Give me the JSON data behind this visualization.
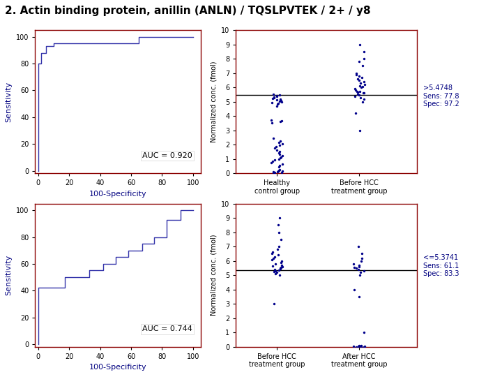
{
  "title": "2. Actin binding protein, anillin (ANLN) / TQSLPVTEK / 2+ / y8",
  "title_fontsize": 11,
  "title_fontweight": "bold",
  "roc1": {
    "fpr": [
      0,
      0,
      0,
      2,
      2,
      5,
      5,
      10,
      10,
      20,
      65,
      65,
      100
    ],
    "tpr": [
      0,
      60,
      80,
      80,
      88,
      88,
      93,
      93,
      95,
      95,
      95,
      100,
      100
    ],
    "auc_text": "AUC = 0.920",
    "xlabel": "100-Specificity",
    "ylabel": "Sensitivity"
  },
  "roc2": {
    "fpr": [
      0,
      0,
      17,
      17,
      33,
      33,
      42,
      42,
      50,
      50,
      58,
      58,
      67,
      67,
      75,
      75,
      83,
      83,
      92,
      92,
      100
    ],
    "tpr": [
      0,
      42,
      42,
      50,
      50,
      55,
      55,
      60,
      60,
      65,
      65,
      70,
      70,
      75,
      75,
      80,
      80,
      93,
      93,
      100,
      100
    ],
    "auc_text": "AUC = 0.744",
    "xlabel": "100-Specificity",
    "ylabel": "Sensitivity"
  },
  "scatter1": {
    "group1_name": "Healthy\ncontrol group",
    "group2_name": "Before HCC\ntreatment group",
    "group1_y": [
      0.05,
      0.07,
      0.09,
      0.11,
      0.13,
      0.16,
      0.19,
      0.22,
      0.28,
      0.45,
      0.55,
      0.65,
      0.75,
      0.85,
      0.95,
      1.0,
      1.1,
      1.15,
      1.25,
      1.35,
      1.45,
      1.55,
      1.65,
      1.75,
      1.85,
      1.95,
      2.05,
      2.15,
      2.25,
      2.45,
      3.55,
      3.65,
      3.68,
      3.72,
      4.72,
      4.82,
      4.87,
      4.92,
      4.97,
      5.02,
      5.07,
      5.12,
      5.17,
      5.22,
      5.27,
      5.32,
      5.37,
      5.42,
      5.47,
      5.52
    ],
    "group2_y": [
      3.0,
      4.2,
      5.0,
      5.2,
      5.3,
      5.4,
      5.5,
      5.52,
      5.6,
      5.62,
      5.65,
      5.7,
      5.72,
      5.8,
      5.9,
      6.0,
      6.05,
      6.1,
      6.2,
      6.3,
      6.4,
      6.5,
      6.6,
      6.7,
      6.8,
      6.9,
      7.0,
      7.5,
      7.8,
      8.0,
      8.5,
      9.0
    ],
    "threshold": 5.4748,
    "threshold_label": ">5.4748\nSens: 77.8\nSpec: 97.2",
    "ylabel": "Normalized conc. (fmol)",
    "ylim": [
      0,
      10
    ]
  },
  "scatter2": {
    "group1_name": "Before HCC\ntreatment group",
    "group2_name": "After HCC\ntreatment group",
    "group1_y": [
      3.0,
      5.0,
      5.1,
      5.2,
      5.25,
      5.3,
      5.35,
      5.4,
      5.45,
      5.5,
      5.55,
      5.6,
      5.65,
      5.7,
      5.8,
      5.9,
      6.0,
      6.1,
      6.2,
      6.3,
      6.4,
      6.5,
      6.6,
      6.8,
      7.0,
      7.5,
      8.0,
      8.5,
      9.0
    ],
    "group2_y": [
      0.0,
      0.01,
      0.02,
      0.03,
      0.04,
      0.05,
      0.06,
      0.07,
      0.08,
      1.0,
      3.5,
      4.0,
      5.0,
      5.2,
      5.3,
      5.4,
      5.5,
      5.55,
      5.6,
      5.7,
      5.8,
      6.0,
      6.2,
      6.5,
      7.0
    ],
    "threshold": 5.3741,
    "threshold_label": "<=5.3741\nSens: 61.1\nSpec: 83.3",
    "ylabel": "Normalized conc. (fmol)",
    "ylim": [
      0,
      10
    ]
  },
  "dot_color": "#00008B",
  "roc_color": "#3333AA",
  "axis_color": "#8B0000",
  "line_color": "#000000",
  "bg_color": "#FFFFFF",
  "label_color": "#000080",
  "annot_color": "#000080"
}
